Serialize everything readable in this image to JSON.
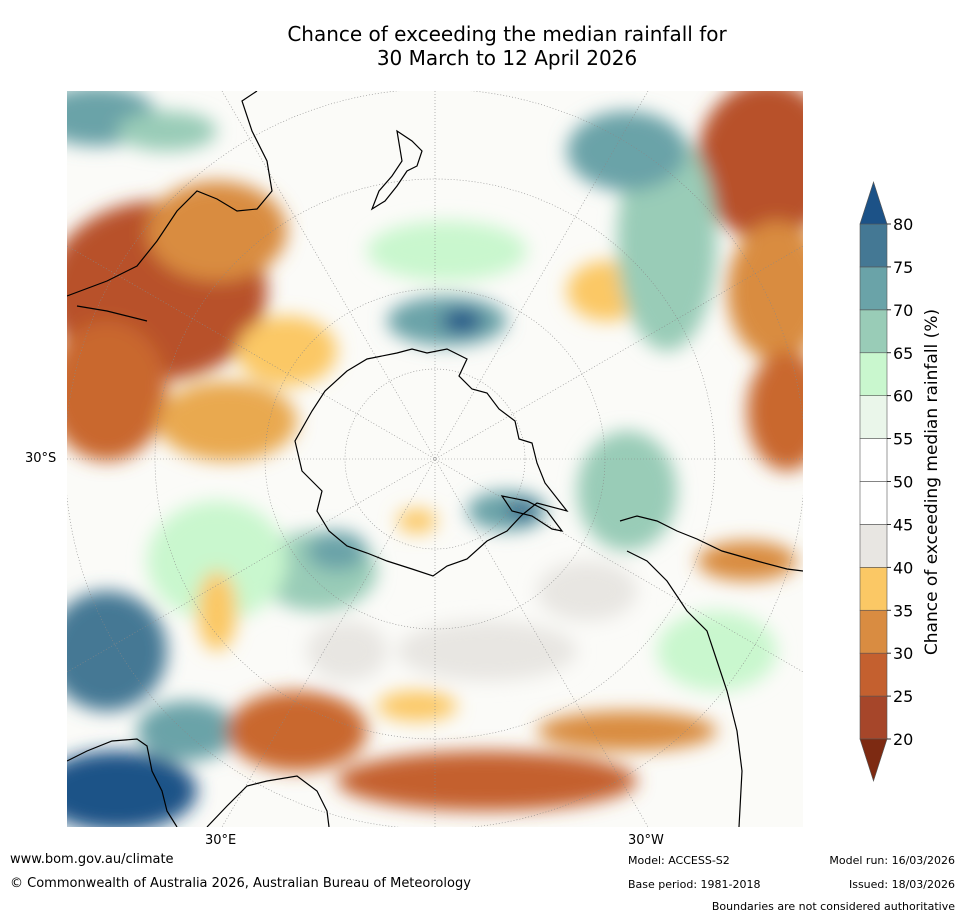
{
  "title": {
    "line1": "Chance of exceeding the median rainfall for",
    "line2": "30 March to 12 April 2026"
  },
  "map": {
    "lat_label": "30°S",
    "lon_labels": [
      "30°E",
      "30°W"
    ]
  },
  "colorbar": {
    "label": "Chance of exceeding median rainfall (%)",
    "ticks": [
      "20",
      "25",
      "30",
      "35",
      "40",
      "45",
      "50",
      "55",
      "60",
      "65",
      "70",
      "75",
      "80"
    ],
    "colors": [
      "#7d2a12",
      "#a6462a",
      "#c4602f",
      "#d98c41",
      "#fbc865",
      "#e8e6e2",
      "#ffffff",
      "#ffffff",
      "#eaf6ea",
      "#c9f7ce",
      "#99ccb7",
      "#6aa3a8",
      "#447894",
      "#1c5287"
    ]
  },
  "footer": {
    "website": "www.bom.gov.au/climate",
    "copyright": "© Commonwealth of Australia 2026, Australian Bureau of Meteorology",
    "model": "Model: ACCESS-S2",
    "base_period": "Base period: 1981-2018",
    "model_run": "Model run: 16/03/2026",
    "issued": "Issued: 18/03/2026",
    "disclaimer": "Boundaries are not considered authoritative"
  }
}
